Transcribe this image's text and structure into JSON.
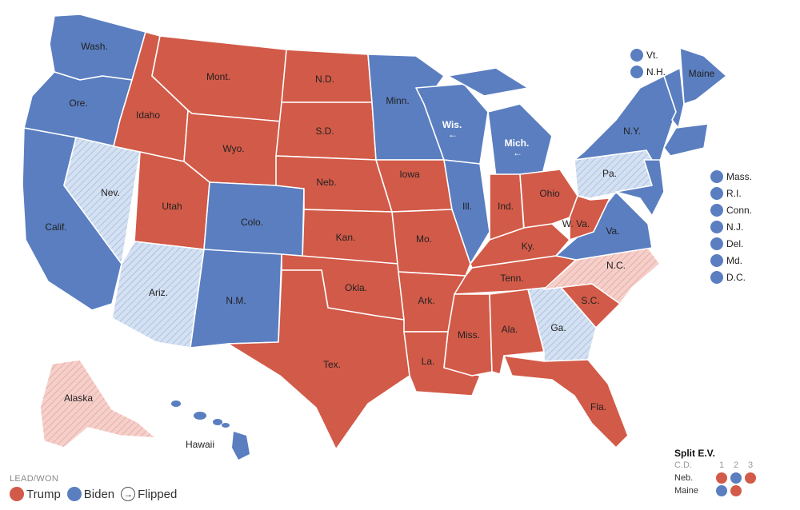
{
  "colors": {
    "trump": "#d25a48",
    "biden": "#5a7ec0",
    "trump_flip": "#f3c4c0",
    "biden_flip": "#d4e1f2"
  },
  "states": {
    "wash": "Wash.",
    "ore": "Ore.",
    "calif": "Calif.",
    "nev": "Nev.",
    "idaho": "Idaho",
    "mont": "Mont.",
    "wyo": "Wyo.",
    "utah": "Utah",
    "colo": "Colo.",
    "ariz": "Ariz.",
    "nm": "N.M.",
    "nd": "N.D.",
    "sd": "S.D.",
    "neb": "Neb.",
    "kan": "Kan.",
    "okla": "Okla.",
    "tex": "Tex.",
    "minn": "Minn.",
    "iowa": "Iowa",
    "mo": "Mo.",
    "ark": "Ark.",
    "la": "La.",
    "wis": "Wis.",
    "ill": "Ill.",
    "mich": "Mich.",
    "ind": "Ind.",
    "ohio": "Ohio",
    "ky": "Ky.",
    "tenn": "Tenn.",
    "miss": "Miss.",
    "ala": "Ala.",
    "ga": "Ga.",
    "fla": "Fla.",
    "sc": "S.C.",
    "nc": "N.C.",
    "va": "Va.",
    "wva": "W. Va.",
    "pa": "Pa.",
    "ny": "N.Y.",
    "maine": "Maine",
    "alaska": "Alaska",
    "hawaii": "Hawaii"
  },
  "small_states_top": [
    "Vt.",
    "N.H."
  ],
  "small_states_right": [
    "Mass.",
    "R.I.",
    "Conn.",
    "N.J.",
    "Del.",
    "Md.",
    "D.C."
  ],
  "legend": {
    "title": "LEAD/WON",
    "trump": "Trump",
    "biden": "Biden",
    "flipped": "Flipped"
  },
  "split_ev": {
    "title": "Split E.V.",
    "cd_label": "C.D.",
    "districts": [
      "1",
      "2",
      "3"
    ],
    "neb": "Neb.",
    "maine": "Maine"
  }
}
